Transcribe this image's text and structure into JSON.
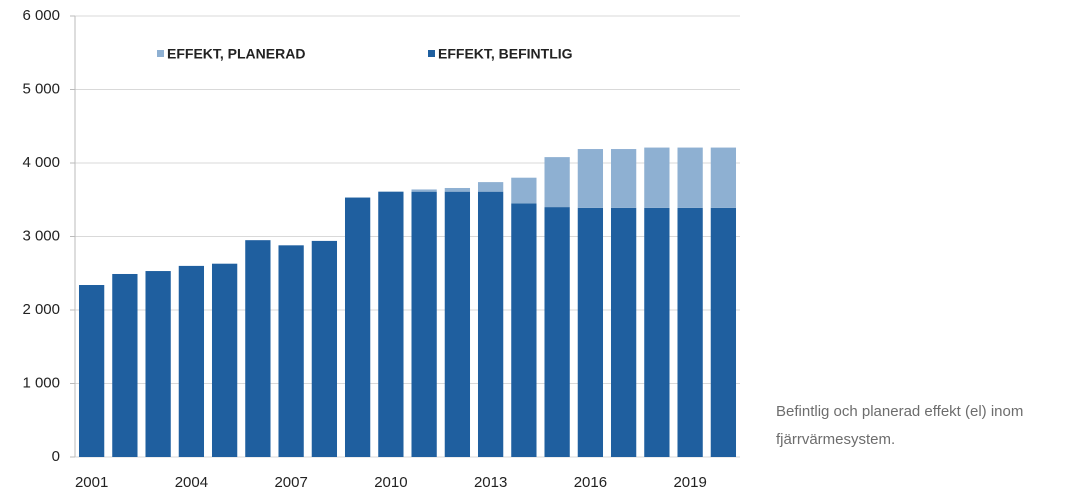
{
  "chart_data": {
    "type": "stacked_bar",
    "categories": [
      "2001",
      null,
      null,
      "2004",
      null,
      null,
      "2007",
      null,
      null,
      "2010",
      null,
      null,
      "2013",
      null,
      null,
      "2016",
      null,
      null,
      "2019",
      null
    ],
    "series": [
      {
        "name": "EFFEKT, PLANERAD",
        "color": "#8eb0d2",
        "values": [
          0,
          0,
          0,
          0,
          0,
          0,
          0,
          0,
          0,
          0,
          30,
          50,
          130,
          350,
          680,
          800,
          800,
          820,
          820,
          820
        ]
      },
      {
        "name": "EFFEKT, BEFINTLIG",
        "color": "#1f5f9f",
        "values": [
          2340,
          2490,
          2530,
          2600,
          2630,
          2950,
          2880,
          2940,
          3530,
          3610,
          3610,
          3610,
          3610,
          3450,
          3400,
          3390,
          3390,
          3390,
          3390,
          3390
        ]
      }
    ],
    "ylim": [
      0,
      6000
    ],
    "yticks": [
      0,
      {
        "value": 1000,
        "label": "1 000"
      },
      {
        "value": 2000,
        "label": "2 000"
      },
      {
        "value": 3000,
        "label": "3 000"
      },
      {
        "value": 4000,
        "label": "4 000"
      },
      {
        "value": 5000,
        "label": "5 000"
      },
      {
        "value": 6000,
        "label": "6 000"
      }
    ],
    "grid": true,
    "caption": "Befintlig och planerad effekt (el) inom fjärrvärmesystem."
  }
}
